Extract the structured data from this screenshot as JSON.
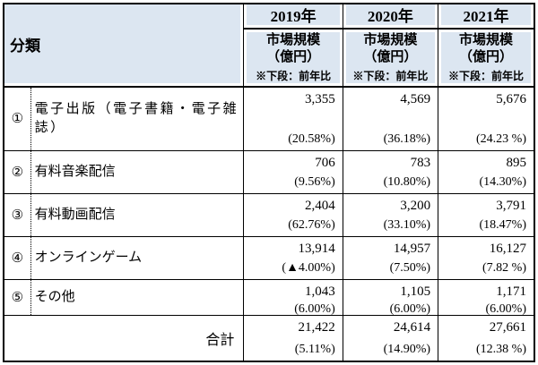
{
  "colors": {
    "header_bg": "#dce6f1",
    "border": "#000000",
    "page_bg": "#ffffff"
  },
  "header": {
    "classification": "分類",
    "years": [
      {
        "year": "2019年",
        "metric_line1": "市場規模",
        "metric_line2": "（億円）",
        "note": "※下段：前年比"
      },
      {
        "year": "2020年",
        "metric_line1": "市場規模",
        "metric_line2": "（億円）",
        "note": "※下段：前年比"
      },
      {
        "year": "2021年",
        "metric_line1": "市場規模",
        "metric_line2": "（億円）",
        "note": "※下段：前年比"
      }
    ]
  },
  "rows": [
    {
      "no": "①",
      "name": "電子出版（電子書籍・電子雑誌）",
      "values": [
        {
          "amount": "3,355",
          "yoy": "(20.58%)"
        },
        {
          "amount": "4,569",
          "yoy": "(36.18%)"
        },
        {
          "amount": "5,676",
          "yoy": "(24.23 %)"
        }
      ]
    },
    {
      "no": "②",
      "name": "有料音楽配信",
      "values": [
        {
          "amount": "706",
          "yoy": "(9.56%)"
        },
        {
          "amount": "783",
          "yoy": "(10.80%)"
        },
        {
          "amount": "895",
          "yoy": "(14.30%)"
        }
      ]
    },
    {
      "no": "③",
      "name": "有料動画配信",
      "values": [
        {
          "amount": "2,404",
          "yoy": "(62.76%)"
        },
        {
          "amount": "3,200",
          "yoy": "(33.10%)"
        },
        {
          "amount": "3,791",
          "yoy": "(18.47%)"
        }
      ]
    },
    {
      "no": "④",
      "name": "オンラインゲーム",
      "values": [
        {
          "amount": "13,914",
          "yoy": "(▲4.00%)"
        },
        {
          "amount": "14,957",
          "yoy": "(7.50%)"
        },
        {
          "amount": "16,127",
          "yoy": "(7.82 %)"
        }
      ]
    },
    {
      "no": "⑤",
      "name": "その他",
      "values": [
        {
          "amount": "1,043",
          "yoy": "(6.00%)"
        },
        {
          "amount": "1,105",
          "yoy": "(6.00%)"
        },
        {
          "amount": "1,171",
          "yoy": "(6.00%)"
        }
      ]
    }
  ],
  "total": {
    "label": "合計",
    "values": [
      {
        "amount": "21,422",
        "yoy": "(5.11%)"
      },
      {
        "amount": "24,614",
        "yoy": "(14.90%)"
      },
      {
        "amount": "27,661",
        "yoy": "(12.38 %)"
      }
    ]
  }
}
